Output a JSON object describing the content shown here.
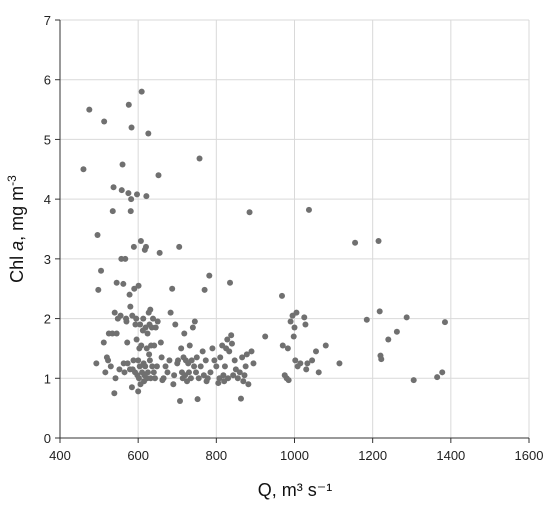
{
  "chart_data": {
    "type": "scatter",
    "title": "",
    "xlabel": "Q, m³ s⁻¹",
    "ylabel_prefix": "Chl ",
    "ylabel_italic": "a",
    "ylabel_unit": ", mg m",
    "ylabel_sup": "-3",
    "xlim": [
      400,
      1600
    ],
    "ylim": [
      0,
      7
    ],
    "xticks": [
      400,
      600,
      800,
      1000,
      1200,
      1400,
      1600
    ],
    "yticks": [
      0,
      1,
      2,
      3,
      4,
      5,
      6,
      7
    ],
    "grid": true,
    "point_color": "#707070",
    "points": [
      [
        460,
        4.5
      ],
      [
        475,
        5.5
      ],
      [
        493,
        1.25
      ],
      [
        496,
        3.4
      ],
      [
        498,
        2.48
      ],
      [
        505,
        2.8
      ],
      [
        513,
        5.3
      ],
      [
        512,
        1.6
      ],
      [
        516,
        1.1
      ],
      [
        520,
        1.35
      ],
      [
        523,
        1.3
      ],
      [
        525,
        1.75
      ],
      [
        530,
        1.2
      ],
      [
        534,
        1.75
      ],
      [
        535,
        3.8
      ],
      [
        537,
        4.2
      ],
      [
        539,
        0.75
      ],
      [
        540,
        2.1
      ],
      [
        542,
        1.0
      ],
      [
        545,
        1.75
      ],
      [
        545,
        2.6
      ],
      [
        548,
        2.0
      ],
      [
        552,
        1.15
      ],
      [
        555,
        2.05
      ],
      [
        557,
        3.0
      ],
      [
        558,
        4.15
      ],
      [
        560,
        4.58
      ],
      [
        562,
        2.58
      ],
      [
        563,
        1.25
      ],
      [
        565,
        1.1
      ],
      [
        567,
        3.0
      ],
      [
        569,
        2.0
      ],
      [
        570,
        1.95
      ],
      [
        572,
        1.6
      ],
      [
        573,
        1.25
      ],
      [
        575,
        4.1
      ],
      [
        576,
        5.58
      ],
      [
        578,
        2.4
      ],
      [
        579,
        1.15
      ],
      [
        580,
        2.2
      ],
      [
        581,
        3.8
      ],
      [
        582,
        4.0
      ],
      [
        583,
        5.2
      ],
      [
        584,
        0.85
      ],
      [
        585,
        2.05
      ],
      [
        586,
        1.15
      ],
      [
        588,
        1.3
      ],
      [
        589,
        3.2
      ],
      [
        590,
        2.5
      ],
      [
        592,
        1.1
      ],
      [
        593,
        1.9
      ],
      [
        595,
        2.0
      ],
      [
        596,
        1.65
      ],
      [
        597,
        4.08
      ],
      [
        598,
        1.05
      ],
      [
        600,
        0.78
      ],
      [
        600,
        1.3
      ],
      [
        601,
        2.55
      ],
      [
        602,
        1.0
      ],
      [
        603,
        1.5
      ],
      [
        604,
        1.2
      ],
      [
        605,
        1.9
      ],
      [
        606,
        0.9
      ],
      [
        607,
        3.3
      ],
      [
        608,
        1.55
      ],
      [
        609,
        5.8
      ],
      [
        610,
        1.1
      ],
      [
        612,
        1.8
      ],
      [
        613,
        2.0
      ],
      [
        614,
        1.25
      ],
      [
        615,
        0.95
      ],
      [
        616,
        1.05
      ],
      [
        617,
        3.15
      ],
      [
        618,
        1.2
      ],
      [
        619,
        1.85
      ],
      [
        620,
        3.2
      ],
      [
        621,
        4.05
      ],
      [
        622,
        1.5
      ],
      [
        623,
        1.0
      ],
      [
        624,
        1.75
      ],
      [
        625,
        1.1
      ],
      [
        626,
        5.1
      ],
      [
        627,
        2.1
      ],
      [
        628,
        1.4
      ],
      [
        629,
        1.9
      ],
      [
        630,
        1.3
      ],
      [
        631,
        2.15
      ],
      [
        632,
        1.0
      ],
      [
        633,
        1.55
      ],
      [
        635,
        1.85
      ],
      [
        636,
        1.2
      ],
      [
        638,
        2.0
      ],
      [
        640,
        1.1
      ],
      [
        641,
        1.55
      ],
      [
        643,
        1.0
      ],
      [
        645,
        1.85
      ],
      [
        648,
        1.2
      ],
      [
        650,
        1.95
      ],
      [
        652,
        4.4
      ],
      [
        655,
        3.1
      ],
      [
        658,
        1.6
      ],
      [
        660,
        1.35
      ],
      [
        662,
        0.97
      ],
      [
        665,
        1.0
      ],
      [
        670,
        1.2
      ],
      [
        675,
        1.1
      ],
      [
        680,
        1.3
      ],
      [
        683,
        2.1
      ],
      [
        687,
        2.5
      ],
      [
        690,
        0.9
      ],
      [
        692,
        1.05
      ],
      [
        695,
        1.9
      ],
      [
        700,
        1.25
      ],
      [
        702,
        1.3
      ],
      [
        705,
        3.2
      ],
      [
        707,
        0.62
      ],
      [
        710,
        1.5
      ],
      [
        712,
        1.1
      ],
      [
        714,
        1.0
      ],
      [
        716,
        1.35
      ],
      [
        718,
        1.75
      ],
      [
        720,
        1.05
      ],
      [
        722,
        1.3
      ],
      [
        725,
        0.95
      ],
      [
        728,
        1.25
      ],
      [
        730,
        1.1
      ],
      [
        732,
        1.55
      ],
      [
        735,
        1.0
      ],
      [
        737,
        1.3
      ],
      [
        740,
        1.85
      ],
      [
        743,
        1.2
      ],
      [
        745,
        1.95
      ],
      [
        748,
        1.1
      ],
      [
        750,
        1.35
      ],
      [
        752,
        0.65
      ],
      [
        755,
        1.0
      ],
      [
        757,
        4.68
      ],
      [
        760,
        1.2
      ],
      [
        765,
        1.45
      ],
      [
        768,
        1.05
      ],
      [
        770,
        2.48
      ],
      [
        773,
        1.3
      ],
      [
        775,
        0.95
      ],
      [
        778,
        1.0
      ],
      [
        782,
        2.72
      ],
      [
        785,
        1.1
      ],
      [
        790,
        1.5
      ],
      [
        795,
        1.3
      ],
      [
        800,
        1.2
      ],
      [
        805,
        0.92
      ],
      [
        808,
        1.0
      ],
      [
        810,
        1.35
      ],
      [
        815,
        1.55
      ],
      [
        818,
        1.05
      ],
      [
        820,
        0.95
      ],
      [
        822,
        1.2
      ],
      [
        825,
        1.5
      ],
      [
        828,
        1.65
      ],
      [
        830,
        1.0
      ],
      [
        833,
        1.45
      ],
      [
        835,
        2.6
      ],
      [
        838,
        1.72
      ],
      [
        840,
        1.58
      ],
      [
        843,
        1.05
      ],
      [
        847,
        1.3
      ],
      [
        850,
        1.15
      ],
      [
        855,
        1.0
      ],
      [
        860,
        1.1
      ],
      [
        863,
        0.66
      ],
      [
        866,
        1.35
      ],
      [
        869,
        0.95
      ],
      [
        872,
        1.05
      ],
      [
        875,
        1.2
      ],
      [
        878,
        1.4
      ],
      [
        882,
        0.9
      ],
      [
        885,
        3.78
      ],
      [
        890,
        1.45
      ],
      [
        895,
        1.25
      ],
      [
        925,
        1.7
      ],
      [
        968,
        2.38
      ],
      [
        970,
        1.55
      ],
      [
        975,
        1.05
      ],
      [
        980,
        1.0
      ],
      [
        983,
        1.5
      ],
      [
        985,
        0.97
      ],
      [
        990,
        1.95
      ],
      [
        995,
        2.05
      ],
      [
        998,
        1.7
      ],
      [
        1000,
        1.85
      ],
      [
        1002,
        1.3
      ],
      [
        1005,
        2.1
      ],
      [
        1008,
        1.2
      ],
      [
        1015,
        1.25
      ],
      [
        1025,
        2.02
      ],
      [
        1028,
        1.9
      ],
      [
        1030,
        1.15
      ],
      [
        1033,
        1.25
      ],
      [
        1037,
        3.82
      ],
      [
        1045,
        1.3
      ],
      [
        1055,
        1.45
      ],
      [
        1062,
        1.1
      ],
      [
        1080,
        1.55
      ],
      [
        1115,
        1.25
      ],
      [
        1155,
        3.27
      ],
      [
        1185,
        1.98
      ],
      [
        1215,
        3.3
      ],
      [
        1218,
        2.12
      ],
      [
        1220,
        1.38
      ],
      [
        1222,
        1.32
      ],
      [
        1240,
        1.65
      ],
      [
        1262,
        1.78
      ],
      [
        1287,
        2.02
      ],
      [
        1305,
        0.97
      ],
      [
        1365,
        1.02
      ],
      [
        1378,
        1.1
      ],
      [
        1385,
        1.94
      ]
    ]
  }
}
